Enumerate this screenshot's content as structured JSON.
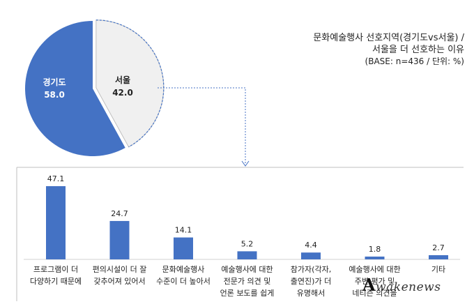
{
  "title": {
    "line1": "문화예술행사 선호지역(경기도vs서울) /",
    "line2": "서울을 더 선호하는 이유",
    "line3": "(BASE: n=436 / 단위: %)"
  },
  "watermark": "wakenews",
  "watermark_mark": "A",
  "colors": {
    "blue": "#4472c4",
    "light": "#f0f0f0",
    "line": "#bfbfbf",
    "arrow": "#4472c4"
  },
  "chart_data": [
    {
      "type": "pie",
      "slices": [
        {
          "label": "경기도",
          "value": 58.0,
          "value_text": "58.0",
          "color": "#4472c4"
        },
        {
          "label": "서울",
          "value": 42.0,
          "value_text": "42.0",
          "color": "#f0f0f0"
        }
      ]
    },
    {
      "type": "bar",
      "categories": [
        [
          "프로그램이 더",
          "다양하기 때문에"
        ],
        [
          "편의시설이 더 잘",
          "갖추어져 있어서"
        ],
        [
          "문화예술행사",
          "수준이 더 높아서"
        ],
        [
          "예술행사에 대한",
          "전문가 의견 및",
          "언론 보도를 쉽게"
        ],
        [
          "참가자(각자,",
          "출연진)가 더",
          "유명해서"
        ],
        [
          "예술행사에 대한",
          "주변 평가 및",
          "네티즌 의견을"
        ],
        [
          "기타"
        ]
      ],
      "values": [
        47.1,
        24.7,
        14.1,
        5.2,
        4.4,
        1.8,
        2.7
      ],
      "labels": [
        "47.1",
        "24.7",
        "14.1",
        "5.2",
        "4.4",
        "1.8",
        "2.7"
      ],
      "ylim": [
        0,
        50
      ]
    }
  ]
}
